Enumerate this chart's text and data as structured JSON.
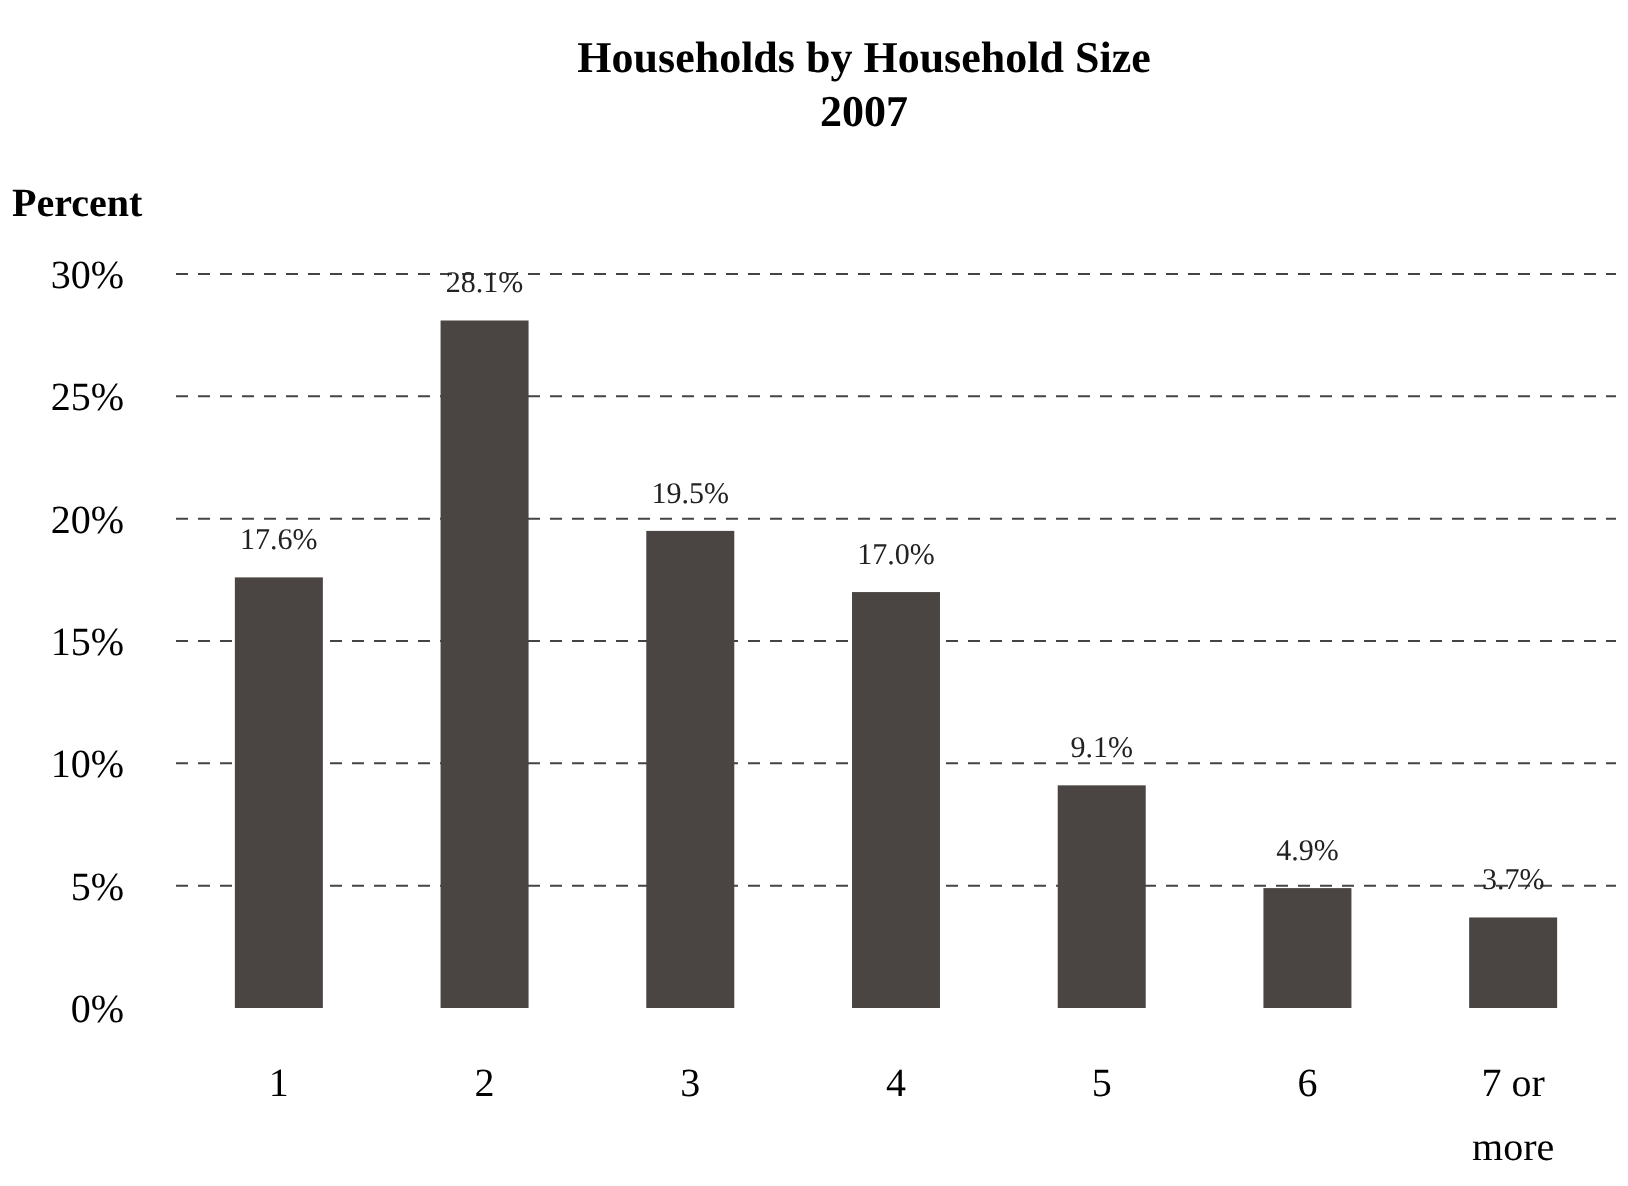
{
  "chart_data": {
    "type": "bar",
    "title": "Households by Household Size",
    "subtitle": "2007",
    "ylabel": "Percent",
    "categories": [
      "1",
      "2",
      "3",
      "4",
      "5",
      "6",
      "7 or more"
    ],
    "values": [
      17.6,
      28.1,
      19.5,
      17.0,
      9.1,
      4.9,
      3.7
    ],
    "value_labels": [
      "17.6%",
      "28.1%",
      "19.5%",
      "17.0%",
      "9.1%",
      "4.9%",
      "3.7%"
    ],
    "color": "#4a4443",
    "ylim": [
      0,
      30
    ],
    "yticks": [
      {
        "value": 0,
        "label": "0%"
      },
      {
        "value": 5,
        "label": "5%"
      },
      {
        "value": 10,
        "label": "10%"
      },
      {
        "value": 15,
        "label": "15%"
      },
      {
        "value": 20,
        "label": "20%"
      },
      {
        "value": 25,
        "label": "25%"
      },
      {
        "value": 30,
        "label": "30%"
      }
    ],
    "grid": "y"
  }
}
